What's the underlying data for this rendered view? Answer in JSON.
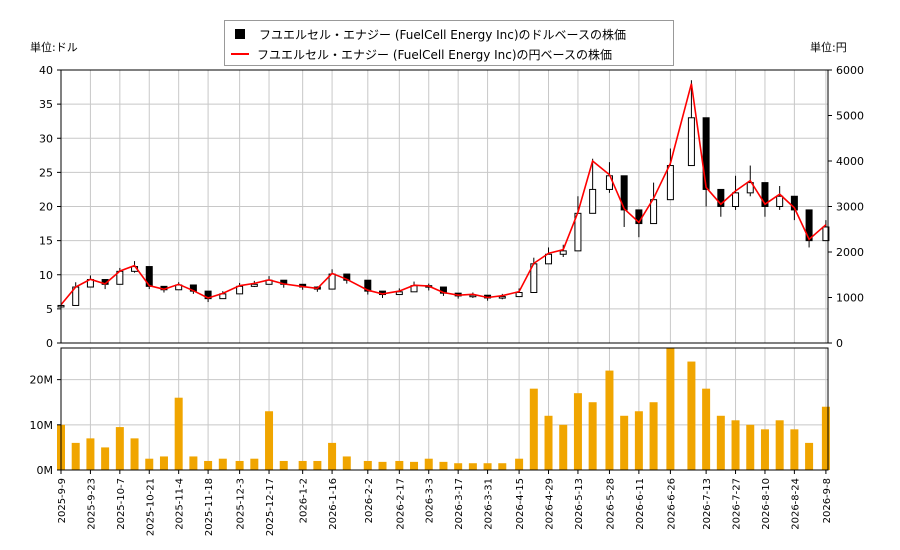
{
  "legend": {
    "usd_label": "フユエルセル・エナジー (FuelCell Energy Inc)のドルベースの株価",
    "jpy_label": "フユエルセル・エナジー (FuelCell Energy Inc)の円ベースの株価"
  },
  "units": {
    "left": "単位:ドル",
    "right": "単位:円"
  },
  "colors": {
    "usd_candle": "#000000",
    "jpy_line": "#ff0000",
    "volume_bar": "#f0a500",
    "grid": "#c8c8c8"
  },
  "chart_data": [
    {
      "type": "line",
      "panel": "price",
      "x_start": "2025-09-09",
      "x_end": "2026-09-09",
      "x_ticks": [
        "2025-9-9",
        "2025-9-23",
        "2025-10-7",
        "2025-10-21",
        "2025-11-4",
        "2025-11-18",
        "2025-12-3",
        "2025-12-17",
        "2026-1-2",
        "2026-1-16",
        "2026-2-2",
        "2026-2-17",
        "2026-3-3",
        "2026-3-17",
        "2026-3-31",
        "2026-4-15",
        "2026-4-29",
        "2026-5-13",
        "2026-5-28",
        "2026-6-11",
        "2026-6-26",
        "2026-7-13",
        "2026-7-27",
        "2026-8-10",
        "2026-8-24",
        "2026-9-8"
      ],
      "y_left_range": [
        0,
        40
      ],
      "y_left_ticks": [
        0,
        5,
        10,
        15,
        20,
        25,
        30,
        35,
        40
      ],
      "y_right_range": [
        0,
        6000
      ],
      "y_right_ticks": [
        0,
        1000,
        2000,
        3000,
        4000,
        5000,
        6000
      ],
      "grid": true,
      "legend_position": "top-center",
      "series": [
        {
          "name": "フユエルセル・エナジー (FuelCell Energy Inc)のドルベースの株価",
          "style": "candlestick",
          "axis": "left",
          "dates": [
            "2025-09-09",
            "2025-09-16",
            "2025-09-23",
            "2025-09-30",
            "2025-10-07",
            "2025-10-14",
            "2025-10-21",
            "2025-10-28",
            "2025-11-04",
            "2025-11-11",
            "2025-11-18",
            "2025-11-25",
            "2025-12-03",
            "2025-12-10",
            "2025-12-17",
            "2025-12-24",
            "2026-01-02",
            "2026-01-09",
            "2026-01-16",
            "2026-01-23",
            "2026-02-02",
            "2026-02-09",
            "2026-02-17",
            "2026-02-24",
            "2026-03-03",
            "2026-03-10",
            "2026-03-17",
            "2026-03-24",
            "2026-03-31",
            "2026-04-07",
            "2026-04-15",
            "2026-04-22",
            "2026-04-29",
            "2026-05-06",
            "2026-05-13",
            "2026-05-20",
            "2026-05-28",
            "2026-06-04",
            "2026-06-11",
            "2026-06-18",
            "2026-06-26",
            "2026-07-06",
            "2026-07-13",
            "2026-07-20",
            "2026-07-27",
            "2026-08-03",
            "2026-08-10",
            "2026-08-17",
            "2026-08-24",
            "2026-08-31",
            "2026-09-08"
          ],
          "values": [
            5.5,
            8.2,
            9.3,
            8.6,
            10.5,
            11.2,
            8.3,
            7.8,
            8.5,
            7.6,
            6.5,
            7.2,
            8.3,
            8.6,
            9.2,
            8.6,
            8.2,
            7.9,
            10.1,
            9.2,
            7.6,
            7.1,
            7.5,
            8.4,
            8.2,
            7.3,
            6.9,
            7.0,
            6.6,
            6.8,
            7.4,
            11.6,
            13.0,
            13.5,
            19.0,
            22.5,
            24.5,
            19.5,
            17.5,
            21.0,
            26.0,
            33.0,
            22.5,
            20.0,
            22.0,
            23.5,
            20.0,
            21.5,
            19.5,
            15.0,
            17.0
          ],
          "ranges": [
            [
              5.0,
              6.6
            ],
            [
              7.6,
              8.9
            ],
            [
              8.6,
              9.9
            ],
            [
              7.9,
              9.1
            ],
            [
              9.9,
              11.0
            ],
            [
              10.3,
              12.0
            ],
            [
              7.9,
              8.8
            ],
            [
              7.4,
              8.2
            ],
            [
              8.0,
              8.9
            ],
            [
              7.2,
              8.0
            ],
            [
              6.0,
              6.9
            ],
            [
              6.8,
              7.6
            ],
            [
              7.8,
              8.8
            ],
            [
              8.2,
              9.1
            ],
            [
              8.7,
              9.8
            ],
            [
              8.1,
              9.0
            ],
            [
              7.8,
              8.6
            ],
            [
              7.5,
              8.3
            ],
            [
              9.5,
              10.8
            ],
            [
              8.7,
              9.7
            ],
            [
              7.1,
              8.1
            ],
            [
              6.6,
              7.5
            ],
            [
              7.1,
              8.0
            ],
            [
              7.8,
              9.0
            ],
            [
              7.7,
              8.7
            ],
            [
              6.9,
              7.8
            ],
            [
              6.5,
              7.3
            ],
            [
              6.6,
              7.4
            ],
            [
              6.2,
              7.0
            ],
            [
              6.4,
              7.2
            ],
            [
              7.0,
              8.0
            ],
            [
              10.8,
              12.5
            ],
            [
              12.2,
              14.0
            ],
            [
              12.6,
              14.4
            ],
            [
              17.5,
              21.5
            ],
            [
              20.0,
              27.0
            ],
            [
              22.0,
              26.5
            ],
            [
              17.0,
              21.5
            ],
            [
              15.5,
              19.5
            ],
            [
              19.0,
              23.5
            ],
            [
              23.0,
              28.5
            ],
            [
              28.0,
              38.5
            ],
            [
              20.0,
              25.5
            ],
            [
              18.5,
              22.5
            ],
            [
              19.5,
              24.5
            ],
            [
              21.5,
              26.0
            ],
            [
              18.5,
              21.5
            ],
            [
              19.5,
              23.0
            ],
            [
              18.0,
              21.0
            ],
            [
              14.0,
              16.5
            ],
            [
              15.5,
              18.0
            ]
          ]
        },
        {
          "name": "フユエルセル・エナジー (FuelCell Energy Inc)の円ベースの株価",
          "style": "line",
          "axis": "right",
          "dates": [
            "2025-09-09",
            "2025-09-16",
            "2025-09-23",
            "2025-09-30",
            "2025-10-07",
            "2025-10-14",
            "2025-10-21",
            "2025-10-28",
            "2025-11-04",
            "2025-11-11",
            "2025-11-18",
            "2025-11-25",
            "2025-12-03",
            "2025-12-10",
            "2025-12-17",
            "2025-12-24",
            "2026-01-02",
            "2026-01-09",
            "2026-01-16",
            "2026-01-23",
            "2026-02-02",
            "2026-02-09",
            "2026-02-17",
            "2026-02-24",
            "2026-03-03",
            "2026-03-10",
            "2026-03-17",
            "2026-03-24",
            "2026-03-31",
            "2026-04-07",
            "2026-04-15",
            "2026-04-22",
            "2026-04-29",
            "2026-05-06",
            "2026-05-13",
            "2026-05-20",
            "2026-05-28",
            "2026-06-04",
            "2026-06-11",
            "2026-06-18",
            "2026-06-26",
            "2026-07-06",
            "2026-07-13",
            "2026-07-20",
            "2026-07-27",
            "2026-08-03",
            "2026-08-10",
            "2026-08-17",
            "2026-08-24",
            "2026-08-31",
            "2026-09-08"
          ],
          "values": [
            840,
            1230,
            1400,
            1300,
            1580,
            1700,
            1260,
            1180,
            1290,
            1150,
            990,
            1090,
            1260,
            1310,
            1390,
            1300,
            1240,
            1200,
            1530,
            1400,
            1160,
            1080,
            1140,
            1270,
            1250,
            1110,
            1050,
            1070,
            1000,
            1040,
            1130,
            1750,
            1970,
            2050,
            2870,
            4000,
            3700,
            2950,
            2650,
            3180,
            3950,
            5700,
            3420,
            3050,
            3340,
            3570,
            3050,
            3270,
            2970,
            2280,
            2600
          ]
        }
      ]
    },
    {
      "type": "bar",
      "panel": "volume",
      "y_range": [
        0,
        27000000
      ],
      "y_ticks": [
        "0M",
        "10M",
        "20M"
      ],
      "grid": true,
      "dates": [
        "2025-09-09",
        "2025-09-16",
        "2025-09-23",
        "2025-09-30",
        "2025-10-07",
        "2025-10-14",
        "2025-10-21",
        "2025-10-28",
        "2025-11-04",
        "2025-11-11",
        "2025-11-18",
        "2025-11-25",
        "2025-12-03",
        "2025-12-10",
        "2025-12-17",
        "2025-12-24",
        "2026-01-02",
        "2026-01-09",
        "2026-01-16",
        "2026-01-23",
        "2026-02-02",
        "2026-02-09",
        "2026-02-17",
        "2026-02-24",
        "2026-03-03",
        "2026-03-10",
        "2026-03-17",
        "2026-03-24",
        "2026-03-31",
        "2026-04-07",
        "2026-04-15",
        "2026-04-22",
        "2026-04-29",
        "2026-05-06",
        "2026-05-13",
        "2026-05-20",
        "2026-05-28",
        "2026-06-04",
        "2026-06-11",
        "2026-06-18",
        "2026-06-26",
        "2026-07-06",
        "2026-07-13",
        "2026-07-20",
        "2026-07-27",
        "2026-08-03",
        "2026-08-10",
        "2026-08-17",
        "2026-08-24",
        "2026-08-31",
        "2026-09-08"
      ],
      "values": [
        10000000,
        6000000,
        7000000,
        5000000,
        9500000,
        7000000,
        2500000,
        3000000,
        16000000,
        3000000,
        2000000,
        2500000,
        2000000,
        2500000,
        13000000,
        2000000,
        2000000,
        2000000,
        6000000,
        3000000,
        2000000,
        1800000,
        2000000,
        1800000,
        2500000,
        1800000,
        1500000,
        1500000,
        1500000,
        1500000,
        2500000,
        18000000,
        12000000,
        10000000,
        17000000,
        15000000,
        22000000,
        12000000,
        13000000,
        15000000,
        27000000,
        24000000,
        18000000,
        12000000,
        11000000,
        10000000,
        9000000,
        11000000,
        9000000,
        6000000,
        14000000
      ]
    }
  ]
}
